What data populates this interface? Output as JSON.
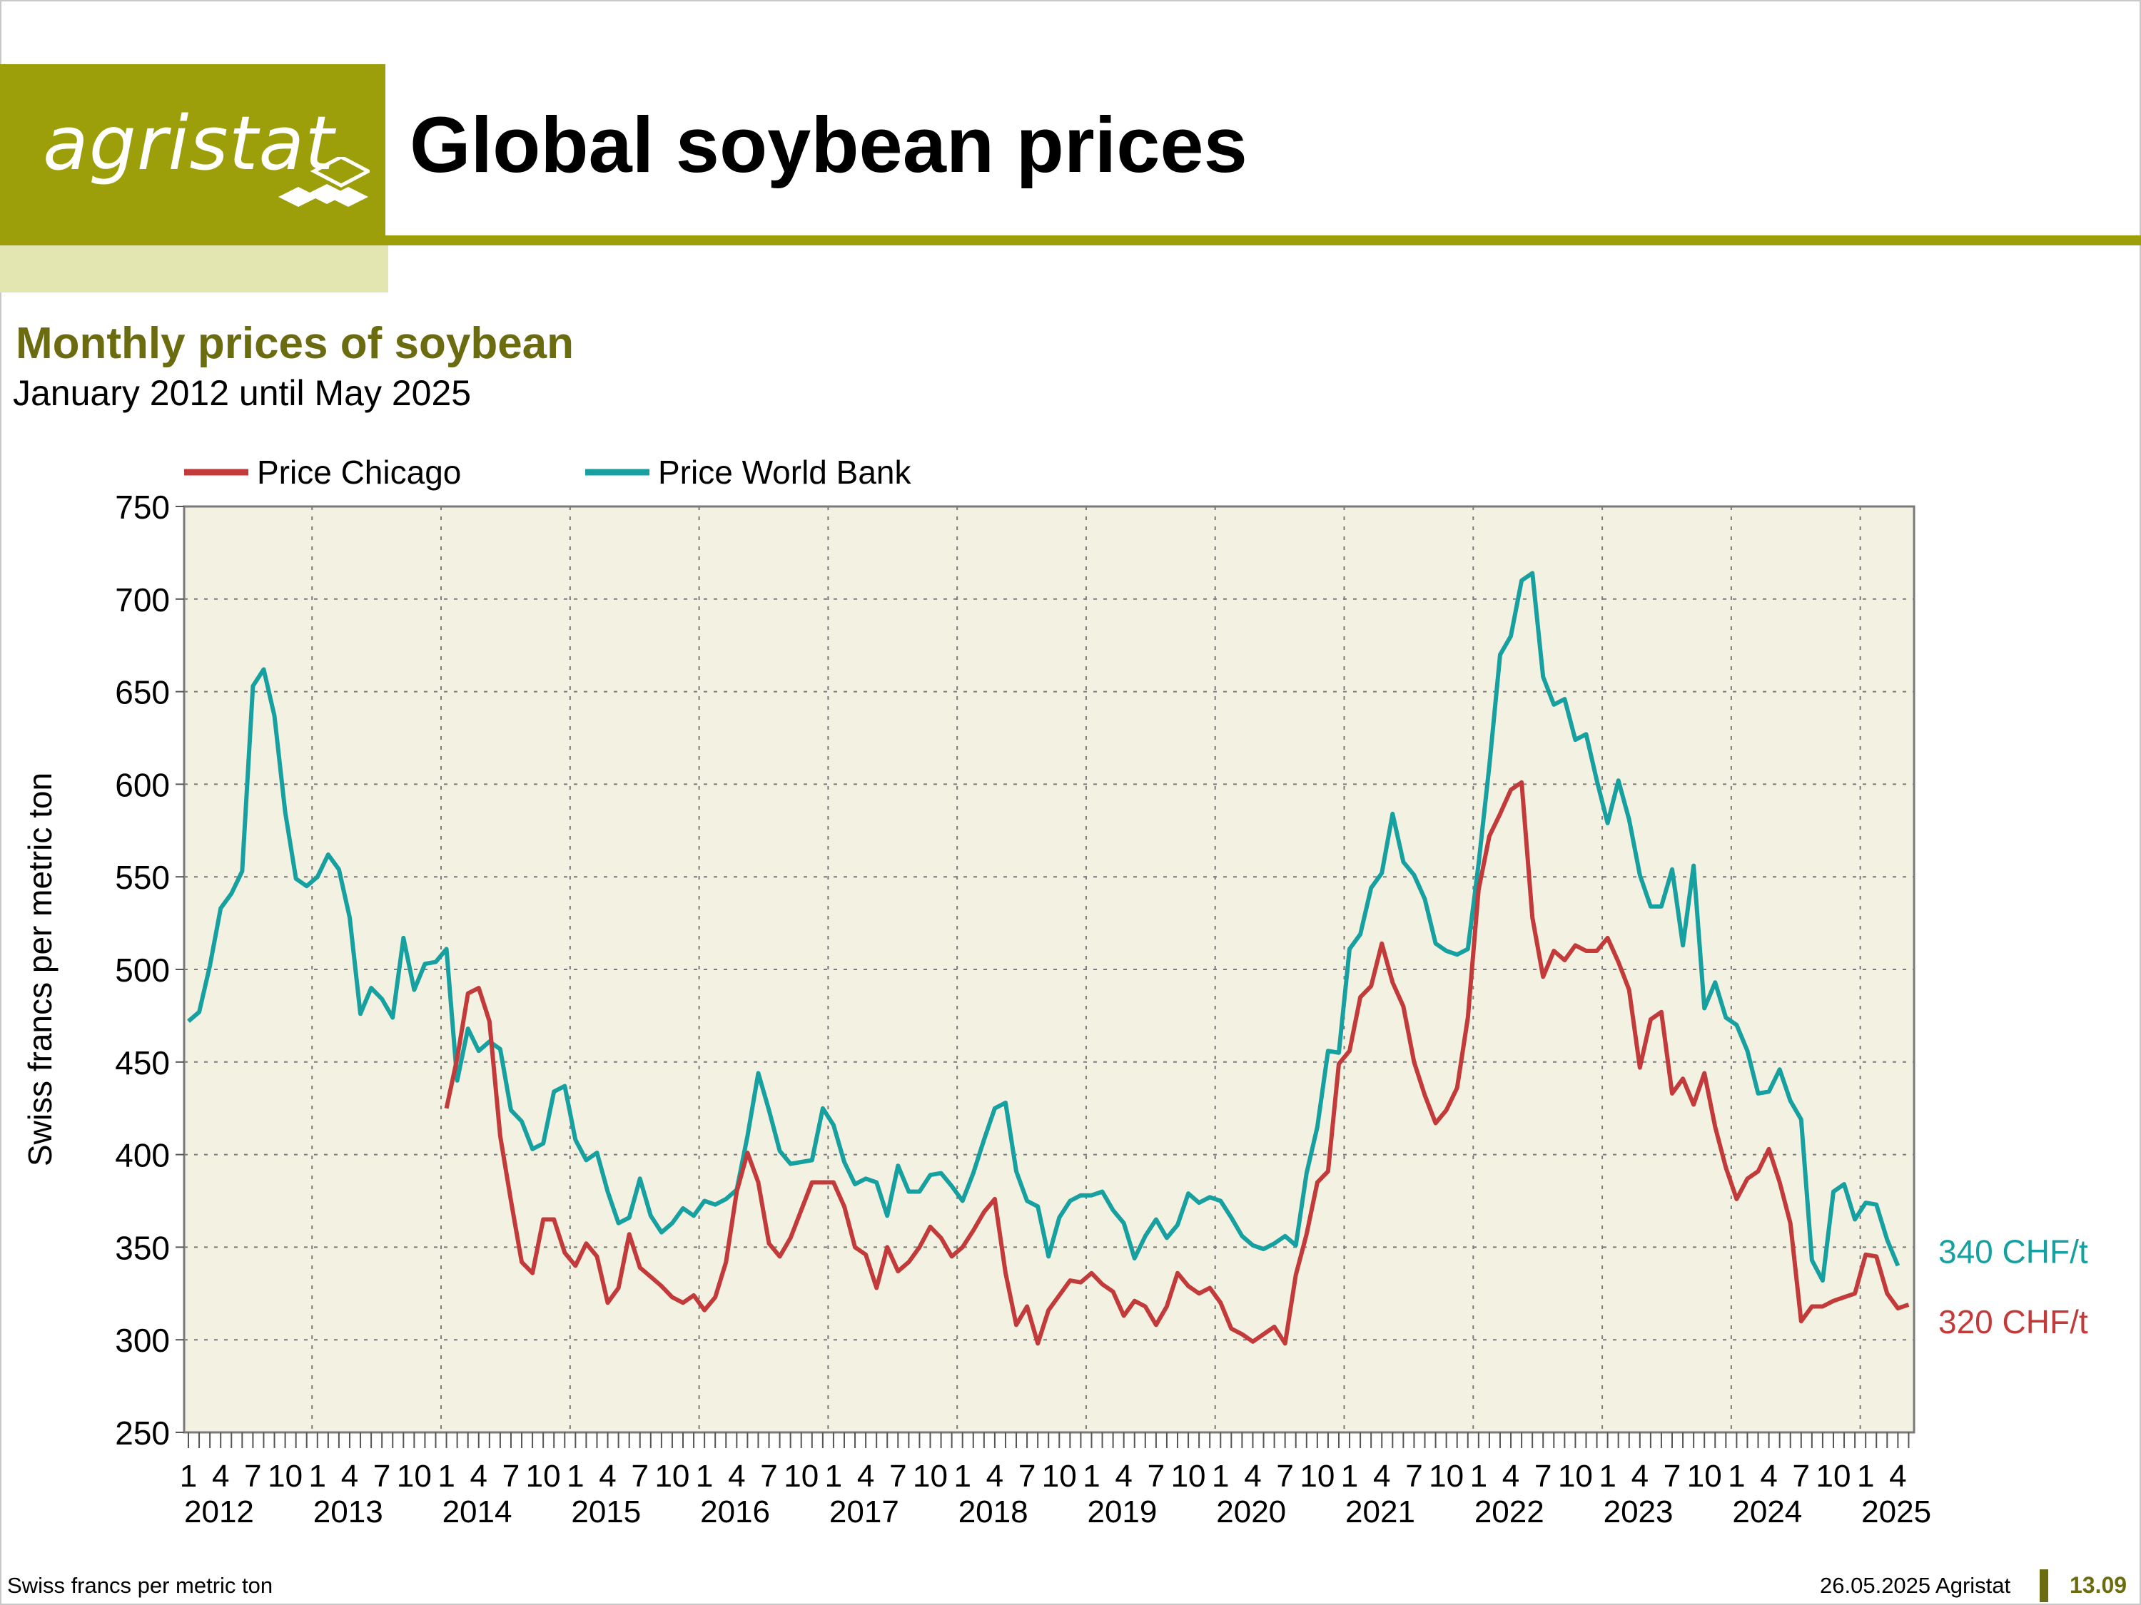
{
  "logo": {
    "text": "agristat"
  },
  "header": {
    "title": "Global soybean prices"
  },
  "colors": {
    "brand": "#9c9f0a",
    "brand_light": "#e3e6b0",
    "title_olive": "#6b6b10",
    "plot_bg": "#f3f2e2",
    "chicago": "#c23a3a",
    "worldbank": "#16a0a0"
  },
  "chart_data": {
    "type": "line",
    "title": "Monthly prices of soybean",
    "subtitle": "January 2012 until May 2025",
    "ylabel": "Swiss francs per metric ton",
    "ylim": [
      250,
      750
    ],
    "yticks": [
      250,
      300,
      350,
      400,
      450,
      500,
      550,
      600,
      650,
      700,
      750
    ],
    "x_start": "2012-01",
    "x_end": "2025-05",
    "month_tick_labels": [
      "1",
      "4",
      "7",
      "10"
    ],
    "years": [
      "2012",
      "2013",
      "2014",
      "2015",
      "2016",
      "2017",
      "2018",
      "2019",
      "2020",
      "2021",
      "2022",
      "2023",
      "2024",
      "2025"
    ],
    "grid": true,
    "legend_position": "top",
    "series": [
      {
        "name": "Price Chicago",
        "color": "#c23a3a",
        "start": "2014-01",
        "end_label": "320 CHF/t",
        "values": [
          425,
          452,
          487,
          490,
          472,
          410,
          375,
          342,
          336,
          365,
          365,
          347,
          340,
          352,
          345,
          320,
          328,
          357,
          339,
          334,
          329,
          323,
          320,
          324,
          316,
          323,
          342,
          380,
          401,
          385,
          352,
          345,
          355,
          370,
          385,
          385,
          385,
          372,
          350,
          346,
          328,
          350,
          337,
          342,
          350,
          361,
          355,
          345,
          350,
          359,
          369,
          376,
          336,
          308,
          318,
          298,
          316,
          324,
          332,
          331,
          336,
          330,
          326,
          313,
          321,
          318,
          308,
          318,
          336,
          329,
          325,
          328,
          320,
          306,
          303,
          299,
          303,
          307,
          298,
          335,
          357,
          385,
          391,
          449,
          456,
          485,
          491,
          514,
          493,
          480,
          450,
          432,
          417,
          424,
          436,
          474,
          543,
          572,
          584,
          597,
          601,
          528,
          496,
          510,
          505,
          513,
          510,
          510,
          517,
          504,
          489,
          447,
          473,
          477,
          433,
          441,
          427,
          444,
          415,
          393,
          376,
          387,
          391,
          403,
          385,
          363,
          310,
          318,
          318,
          321,
          323,
          325,
          346,
          345,
          325,
          317,
          319
        ]
      },
      {
        "name": "Price World Bank",
        "color": "#16a0a0",
        "start": "2012-01",
        "end_label": "340 CHF/t",
        "values": [
          472,
          477,
          502,
          533,
          541,
          553,
          653,
          662,
          637,
          585,
          549,
          545,
          550,
          562,
          554,
          528,
          476,
          490,
          484,
          474,
          517,
          489,
          503,
          504,
          511,
          440,
          468,
          456,
          461,
          457,
          424,
          418,
          403,
          406,
          434,
          437,
          408,
          397,
          401,
          380,
          363,
          366,
          387,
          367,
          358,
          363,
          371,
          367,
          375,
          373,
          376,
          381,
          410,
          444,
          424,
          402,
          395,
          396,
          397,
          425,
          416,
          396,
          384,
          387,
          385,
          367,
          394,
          380,
          380,
          389,
          390,
          383,
          375,
          390,
          408,
          425,
          428,
          391,
          375,
          372,
          345,
          366,
          375,
          378,
          378,
          380,
          370,
          363,
          344,
          356,
          365,
          355,
          362,
          379,
          374,
          377,
          375,
          366,
          356,
          351,
          349,
          352,
          356,
          351,
          390,
          415,
          456,
          455,
          511,
          519,
          544,
          552,
          584,
          558,
          551,
          538,
          514,
          510,
          508,
          511,
          557,
          610,
          670,
          680,
          710,
          714,
          658,
          643,
          646,
          624,
          627,
          602,
          579,
          602,
          581,
          551,
          534,
          534,
          554,
          513,
          556,
          479,
          493,
          474,
          470,
          456,
          433,
          434,
          446,
          429,
          419,
          343,
          332,
          380,
          384,
          365,
          374,
          373,
          354,
          340
        ]
      }
    ]
  },
  "footer": {
    "left": "Swiss francs per metric ton",
    "right": "26.05.2025 Agristat",
    "page": "13.09"
  }
}
